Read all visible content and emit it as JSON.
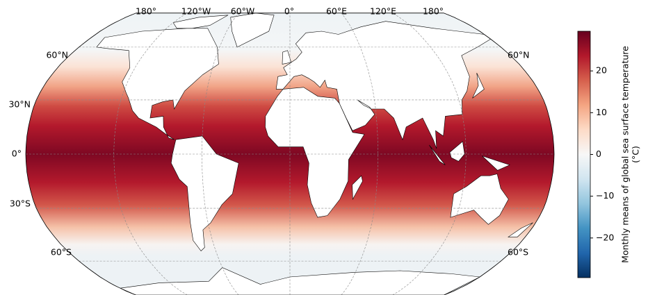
{
  "map": {
    "top_labels": [
      "180°",
      "120°W",
      "60°W",
      "0°",
      "60°E",
      "120°E",
      "180°"
    ],
    "left_labels": [
      "60°N",
      "30°N",
      "0°",
      "30°S",
      "60°S"
    ],
    "right_labels": [
      "60°N",
      "60°S"
    ]
  },
  "colorbar": {
    "label": [
      "Monthly means of global sea surface temperature",
      "(°C)"
    ],
    "lim": [
      -29.5,
      29.5
    ],
    "colors": [
      "#053061",
      "#2166ac",
      "#4393c3",
      "#92c5de",
      "#d1e5f0",
      "#f7f7f7",
      "#fddbc7",
      "#f4a582",
      "#d6604d",
      "#b2182b",
      "#67001f"
    ],
    "ticks": [
      {
        "value": -20,
        "label": "−20"
      },
      {
        "value": -10,
        "label": "−10"
      },
      0,
      10,
      20
    ]
  }
}
